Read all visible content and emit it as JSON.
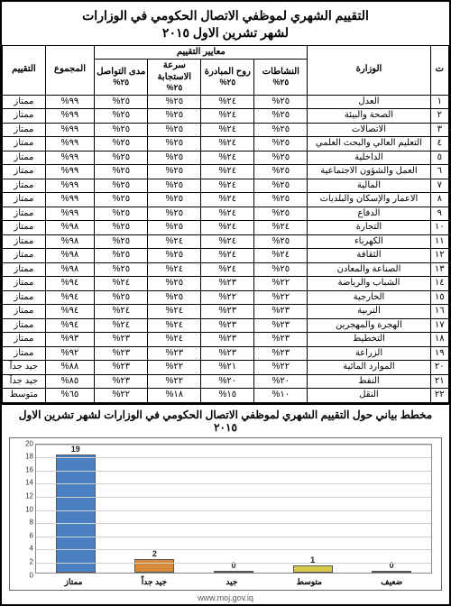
{
  "title_line1": "التقييم الشهري لموظفي الاتصال الحكومي في الوزارات",
  "title_line2": "لشهر تشرين الاول ٢٠١٥",
  "header": {
    "idx": "ت",
    "ministry": "الوزارة",
    "criteria_group": "معايير التقييم",
    "criteria": [
      {
        "name": "النشاطات",
        "weight": "٢٥%"
      },
      {
        "name": "روح المبادرة",
        "weight": "٢٥%"
      },
      {
        "name": "سرعة الاستجابة",
        "weight": "٢٥%"
      },
      {
        "name": "مدى التواصل",
        "weight": "٢٥%"
      }
    ],
    "total": "المجموع",
    "rating": "التقييم"
  },
  "rows": [
    {
      "i": "١",
      "min": "العدل",
      "c": [
        "٢٥%",
        "٢٤%",
        "٢٥%",
        "٢٥%"
      ],
      "t": "٩٩%",
      "r": "ممتاز"
    },
    {
      "i": "٢",
      "min": "الصحة والبيئة",
      "c": [
        "٢٥%",
        "٢٤%",
        "٢٥%",
        "٢٥%"
      ],
      "t": "٩٩%",
      "r": "ممتاز"
    },
    {
      "i": "٣",
      "min": "الاتصالات",
      "c": [
        "٢٥%",
        "٢٤%",
        "٢٥%",
        "٢٥%"
      ],
      "t": "٩٩%",
      "r": "ممتاز"
    },
    {
      "i": "٤",
      "min": "التعليم العالي والبحث العلمي",
      "c": [
        "٢٥%",
        "٢٤%",
        "٢٥%",
        "٢٥%"
      ],
      "t": "٩٩%",
      "r": "ممتاز"
    },
    {
      "i": "٥",
      "min": "الداخلية",
      "c": [
        "٢٥%",
        "٢٤%",
        "٢٥%",
        "٢٥%"
      ],
      "t": "٩٩%",
      "r": "ممتاز"
    },
    {
      "i": "٦",
      "min": "العمل والشؤون الاجتماعية",
      "c": [
        "٢٥%",
        "٢٤%",
        "٢٥%",
        "٢٥%"
      ],
      "t": "٩٩%",
      "r": "ممتاز"
    },
    {
      "i": "٧",
      "min": "المالية",
      "c": [
        "٢٥%",
        "٢٤%",
        "٢٥%",
        "٢٥%"
      ],
      "t": "٩٩%",
      "r": "ممتاز"
    },
    {
      "i": "٨",
      "min": "الاعمار والإسكان والبلديات",
      "c": [
        "٢٥%",
        "٢٤%",
        "٢٥%",
        "٢٥%"
      ],
      "t": "٩٩%",
      "r": "ممتاز"
    },
    {
      "i": "٩",
      "min": "الدفاع",
      "c": [
        "٢٥%",
        "٢٤%",
        "٢٥%",
        "٢٥%"
      ],
      "t": "٩٩%",
      "r": "ممتاز"
    },
    {
      "i": "١٠",
      "min": "التجارة",
      "c": [
        "٢٤%",
        "٢٤%",
        "٢٥%",
        "٢٥%"
      ],
      "t": "٩٨%",
      "r": "ممتاز"
    },
    {
      "i": "١١",
      "min": "الكهرباء",
      "c": [
        "٢٥%",
        "٢٤%",
        "٢٤%",
        "٢٥%"
      ],
      "t": "٩٨%",
      "r": "ممتاز"
    },
    {
      "i": "١٢",
      "min": "الثقافة",
      "c": [
        "٢٤%",
        "٢٤%",
        "٢٥%",
        "٢٥%"
      ],
      "t": "٩٨%",
      "r": "ممتاز"
    },
    {
      "i": "١٣",
      "min": "الصناعة والمعادن",
      "c": [
        "٢٥%",
        "٢٤%",
        "٢٤%",
        "٢٥%"
      ],
      "t": "٩٨%",
      "r": "ممتاز"
    },
    {
      "i": "١٤",
      "min": "الشباب والرياضة",
      "c": [
        "٢٢%",
        "٢٣%",
        "٢٥%",
        "٢٤%"
      ],
      "t": "٩٤%",
      "r": "ممتاز"
    },
    {
      "i": "١٥",
      "min": "الخارجية",
      "c": [
        "٢٢%",
        "٢٢%",
        "٢٥%",
        "٢٥%"
      ],
      "t": "٩٤%",
      "r": "ممتاز"
    },
    {
      "i": "١٦",
      "min": "التربية",
      "c": [
        "٢٣%",
        "٢٣%",
        "٢٤%",
        "٢٤%"
      ],
      "t": "٩٤%",
      "r": "ممتاز"
    },
    {
      "i": "١٧",
      "min": "الهجرة والمهجرين",
      "c": [
        "٢٣%",
        "٢٣%",
        "٢٤%",
        "٢٤%"
      ],
      "t": "٩٤%",
      "r": "ممتاز"
    },
    {
      "i": "١٨",
      "min": "التخطيط",
      "c": [
        "٢٣%",
        "٢٣%",
        "٢٤%",
        "٢٣%"
      ],
      "t": "٩٣%",
      "r": "ممتاز"
    },
    {
      "i": "١٩",
      "min": "الزراعة",
      "c": [
        "٢٣%",
        "٢٣%",
        "٢٣%",
        "٢٣%"
      ],
      "t": "٩٢%",
      "r": "ممتاز"
    },
    {
      "i": "٢٠",
      "min": "الموارد المائية",
      "c": [
        "٢٢%",
        "٢١%",
        "٢٢%",
        "٢٣%"
      ],
      "t": "٨٨%",
      "r": "جيد جداً"
    },
    {
      "i": "٢١",
      "min": "النفط",
      "c": [
        "٢٠%",
        "٢٠%",
        "٢٢%",
        "٢٣%"
      ],
      "t": "٨٥%",
      "r": "جيد جداً"
    },
    {
      "i": "٢٢",
      "min": "النقل",
      "c": [
        "١٠%",
        "١٥%",
        "١٨%",
        "٢٢%"
      ],
      "t": "٦٥%",
      "r": "متوسط"
    }
  ],
  "chart": {
    "title": "مخطط بياني حول التقييم الشهري لموظفي الاتصال الحكومي في الوزارات لشهر تشرين الاول ٢٠١٥",
    "ymax": 20,
    "ytick_step": 2,
    "background_color": "#ffffff",
    "grid_color": "#d0d0d0",
    "bars": [
      {
        "label": "ممتاز",
        "value": 19,
        "color": "#4a7fc1"
      },
      {
        "label": "جيد جداً",
        "value": 2,
        "color": "#d98b3a"
      },
      {
        "label": "جيد",
        "value": 0,
        "color": "#8fa64b"
      },
      {
        "label": "متوسط",
        "value": 1,
        "color": "#d8c94a"
      },
      {
        "label": "ضعيف",
        "value": 0,
        "color": "#6f9fd8"
      }
    ]
  },
  "footer_url": "www.moj.gov.iq"
}
